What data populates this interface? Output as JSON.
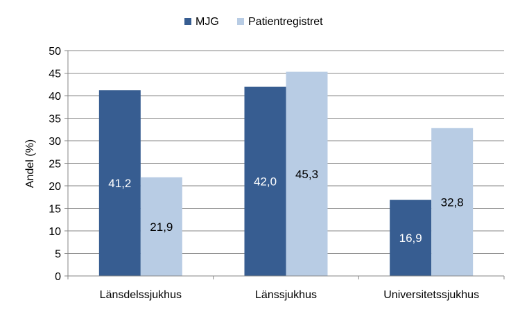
{
  "chart_data": {
    "type": "bar",
    "categories": [
      "Länsdelssjukhus",
      "Länssjukhus",
      "Universitetssjukhus"
    ],
    "series": [
      {
        "name": "MJG",
        "values": [
          41.2,
          42.0,
          16.9
        ],
        "labels": [
          "41,2",
          "42,0",
          "16,9"
        ],
        "color": "#375d91",
        "label_color": "#ffffff"
      },
      {
        "name": "Patientregistret",
        "values": [
          21.9,
          45.3,
          32.8
        ],
        "labels": [
          "21,9",
          "45,3",
          "32,8"
        ],
        "color": "#b8cce4",
        "label_color": "#000000"
      }
    ],
    "yticks": [
      "0",
      "5",
      "10",
      "15",
      "20",
      "25",
      "30",
      "35",
      "40",
      "45",
      "50"
    ],
    "ylabel": "Andel (%)",
    "xlabel": "",
    "title": "",
    "ylim": [
      0,
      50
    ],
    "grid": true,
    "legend": "top-center"
  }
}
